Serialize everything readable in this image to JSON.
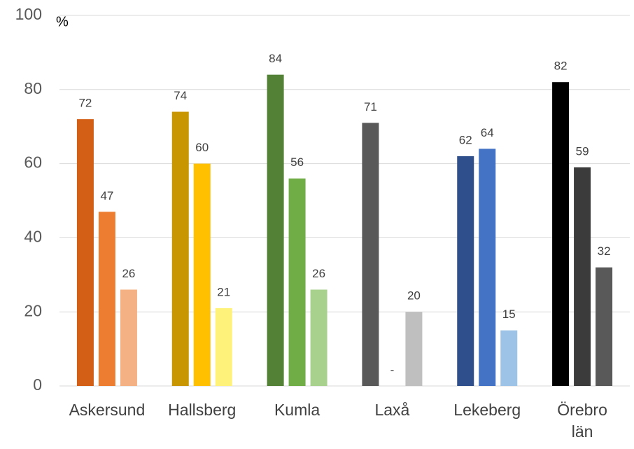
{
  "chart_data": {
    "type": "bar",
    "title": "%",
    "categories": [
      "Askersund",
      "Hallsberg",
      "Kumla",
      "Laxå",
      "Lekeberg",
      "Örebro län"
    ],
    "series": [
      {
        "colors": [
          "#d35f17",
          "#c89600",
          "#538135",
          "#595959",
          "#2f4f8c",
          "#000000"
        ],
        "values": [
          72,
          74,
          84,
          71,
          62,
          82
        ]
      },
      {
        "colors": [
          "#ed7d31",
          "#ffc000",
          "#70ad47",
          "#7f7f7f",
          "#4472c4",
          "#3b3b3b"
        ],
        "values": [
          47,
          60,
          56,
          null,
          64,
          59
        ],
        "value_labels": [
          "47",
          "60",
          "56",
          "-",
          "64",
          "59"
        ]
      },
      {
        "colors": [
          "#f4b183",
          "#fff27a",
          "#a9d18e",
          "#bfbfbf",
          "#9dc3e6",
          "#595959"
        ],
        "values": [
          26,
          21,
          26,
          20,
          15,
          32
        ]
      }
    ],
    "ylim": [
      0,
      100
    ],
    "yticks": [
      0,
      20,
      40,
      60,
      80,
      100
    ],
    "grid": true
  }
}
